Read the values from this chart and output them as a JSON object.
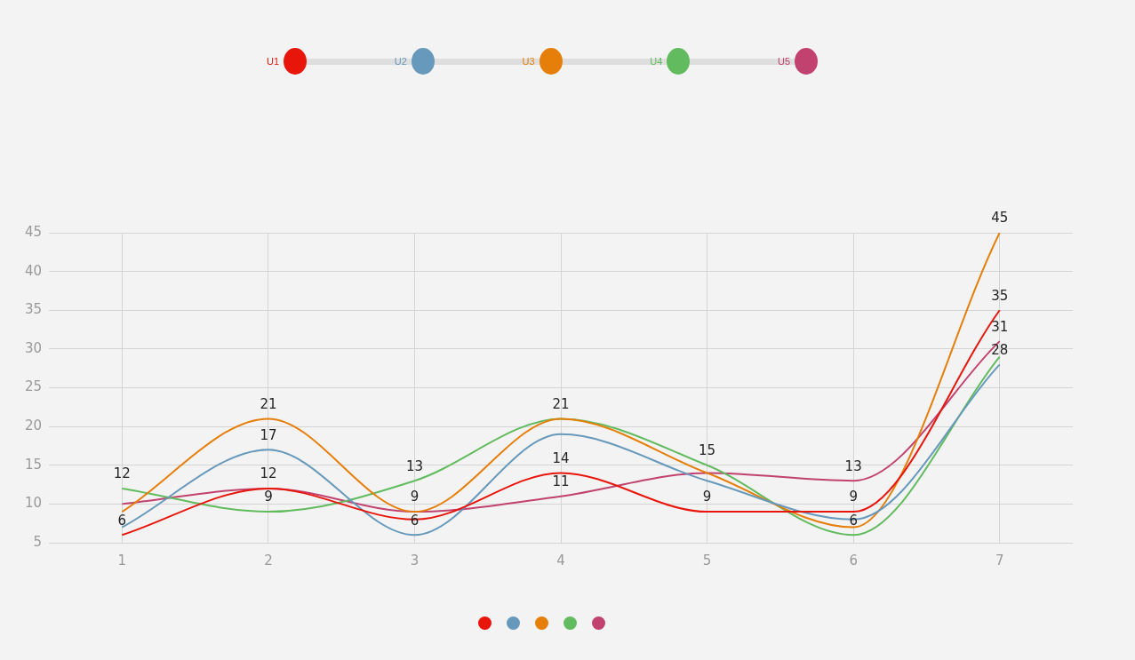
{
  "chart_data": {
    "type": "line",
    "categories": [
      "1",
      "2",
      "3",
      "4",
      "5",
      "6",
      "7"
    ],
    "series": [
      {
        "name": "U1",
        "color": "#e8150b",
        "values": [
          6,
          12,
          8,
          14,
          9,
          9,
          35
        ],
        "value_labels": [
          "6",
          "12",
          null,
          "14",
          "9",
          "9",
          "35"
        ]
      },
      {
        "name": "U2",
        "color": "#6699bb",
        "values": [
          7,
          17,
          6,
          19,
          13,
          8,
          28
        ],
        "value_labels": [
          null,
          "17",
          "6",
          null,
          null,
          null,
          "28"
        ]
      },
      {
        "name": "U3",
        "color": "#e67e0a",
        "values": [
          9,
          21,
          9,
          21,
          14,
          7,
          45
        ],
        "value_labels": [
          null,
          "21",
          "9",
          "21",
          null,
          null,
          "45"
        ]
      },
      {
        "name": "U4",
        "color": "#62bb5e",
        "values": [
          12,
          9,
          13,
          21,
          15,
          6,
          29
        ],
        "value_labels": [
          "12",
          "9",
          "13",
          null,
          "15",
          "6",
          null
        ]
      },
      {
        "name": "U5",
        "color": "#c2426f",
        "values": [
          10,
          12,
          9,
          11,
          14,
          13,
          31
        ],
        "value_labels": [
          null,
          null,
          null,
          "11",
          null,
          "13",
          "31"
        ]
      }
    ],
    "ylim": [
      5,
      45
    ],
    "yticks": [
      5,
      10,
      15,
      20,
      25,
      30,
      35,
      40,
      45
    ],
    "grid": true,
    "legend": "top",
    "marker": "none",
    "line_style": "solid"
  }
}
